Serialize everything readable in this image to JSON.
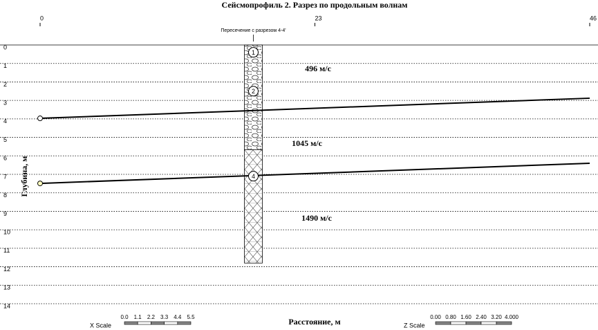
{
  "chart_data": {
    "type": "profile",
    "title": "Сейсмопрофиль 2. Разрез по продольным волнам",
    "xlabel": "Расстояние, м",
    "ylabel": "Глубина, м",
    "xlim": [
      0,
      46
    ],
    "xticks": [
      0,
      23,
      46
    ],
    "ylim": [
      0,
      14
    ],
    "yticks": [
      0,
      1,
      2,
      3,
      4,
      5,
      6,
      7,
      8,
      9,
      10,
      11,
      12,
      13,
      14
    ],
    "grid": true,
    "boundaries": [
      {
        "x": [
          0,
          46
        ],
        "values": [
          3.97,
          2.88
        ],
        "color": "#000000"
      },
      {
        "x": [
          0,
          46
        ],
        "values": [
          7.49,
          6.4
        ],
        "color": "#000000"
      }
    ],
    "annotations": [
      "496 м/с",
      "1045 м/с",
      "1490 м/с"
    ],
    "borehole": {
      "label": "Пересечение с разрезом 4-4'",
      "x": [
        17.1,
        18.6
      ],
      "depth": [
        0,
        11.8
      ],
      "markers": [
        {
          "label": "1",
          "depth": 0.4
        },
        {
          "label": "2",
          "depth": 2.5
        },
        {
          "label": "4",
          "depth": 7.1
        }
      ]
    },
    "x_scale": {
      "label": "X Scale",
      "ticks": [
        {
          "value": 0,
          "label": "0.0"
        },
        1.1,
        2.2,
        3.3,
        4.4,
        5.5
      ]
    },
    "z_scale": {
      "label": "Z Scale",
      "ticks": [
        {
          "value": 0,
          "label": "0.00"
        },
        {
          "value": 0.8,
          "label": "0.80"
        },
        {
          "value": 1.6,
          "label": "1.60"
        },
        {
          "value": 2.4,
          "label": "2.40"
        },
        {
          "value": 3.2,
          "label": "3.20"
        },
        {
          "value": 4,
          "label": "4.000"
        }
      ]
    }
  }
}
